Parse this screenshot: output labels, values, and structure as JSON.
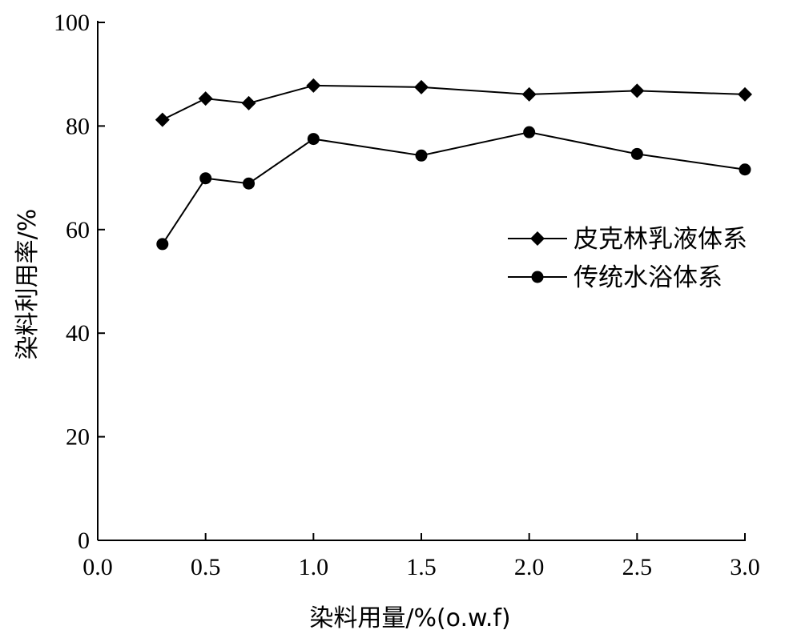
{
  "chart_data": {
    "type": "line",
    "xlabel": "染料用量/%(o.w.f)",
    "ylabel": "染料利用率/%",
    "xlim": [
      0.0,
      3.0
    ],
    "ylim": [
      0,
      100
    ],
    "xticks": [
      "0.0",
      "0.5",
      "1.0",
      "1.5",
      "2.0",
      "2.5",
      "3.0"
    ],
    "yticks": [
      "0",
      "20",
      "40",
      "60",
      "80",
      "100"
    ],
    "grid": false,
    "legend_position": "right",
    "series": [
      {
        "name": "皮克林乳液体系",
        "marker": "diamond",
        "color": "#000000",
        "x": [
          0.3,
          0.5,
          0.7,
          1.0,
          1.5,
          2.0,
          2.5,
          3.0
        ],
        "y": [
          81.2,
          85.3,
          84.4,
          87.8,
          87.5,
          86.1,
          86.8,
          86.1
        ]
      },
      {
        "name": "传统水浴体系",
        "marker": "circle",
        "color": "#000000",
        "x": [
          0.3,
          0.5,
          0.7,
          1.0,
          1.5,
          2.0,
          2.5,
          3.0
        ],
        "y": [
          57.2,
          69.9,
          68.9,
          77.5,
          74.3,
          78.8,
          74.6,
          71.6
        ]
      }
    ]
  }
}
